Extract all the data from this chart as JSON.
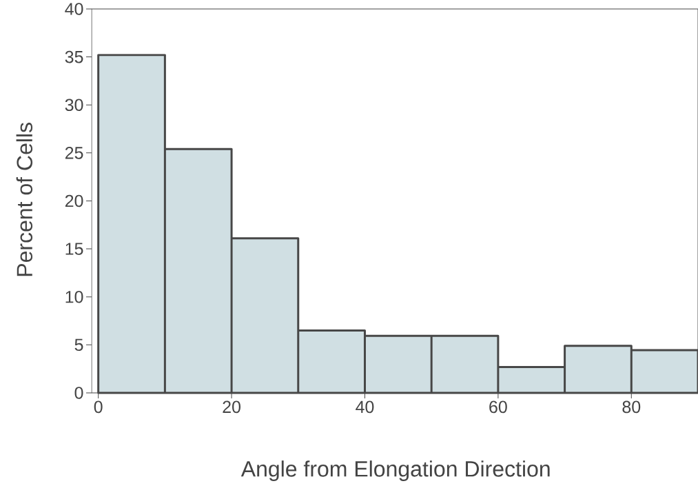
{
  "chart_data": {
    "type": "histogram",
    "xlabel": "Angle from Elongation Direction",
    "ylabel": "Percent of Cells",
    "bins": [
      0,
      10,
      20,
      30,
      40,
      50,
      60,
      70,
      80,
      90
    ],
    "values": [
      35.2,
      25.4,
      16.1,
      6.5,
      5.95,
      5.95,
      2.7,
      4.9,
      4.45
    ],
    "color": "#d0dfe3",
    "xlim": [
      -1,
      90
    ],
    "ylim": [
      0,
      40
    ],
    "xticks": [
      0,
      20,
      40,
      60,
      80
    ],
    "yticks": [
      0,
      5,
      10,
      15,
      20,
      25,
      30,
      35,
      40
    ],
    "grid": false
  }
}
